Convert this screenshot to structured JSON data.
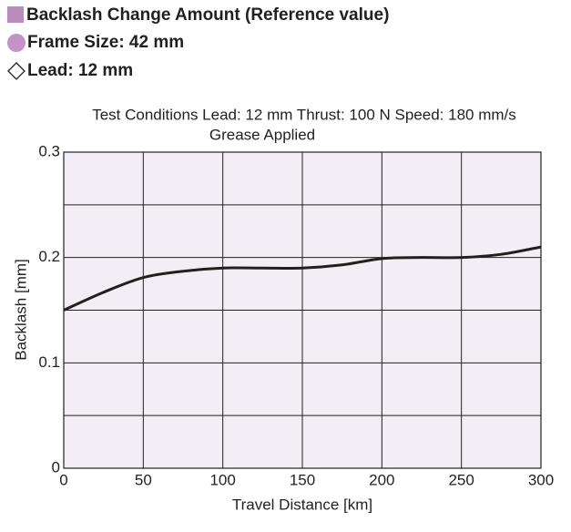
{
  "header": [
    "Backlash Change Amount  (Reference value)",
    "Frame Size: 42 mm",
    "Lead: 12 mm"
  ],
  "chart_data": {
    "type": "line",
    "annotations": [
      "Test Conditions   Lead: 12 mm   Thrust: 100 N   Speed: 180 mm/s",
      "Grease Applied"
    ],
    "x_label": "Travel Distance [km]",
    "y_label": "Backlash [mm]",
    "x": [
      0,
      25,
      50,
      75,
      100,
      125,
      150,
      175,
      200,
      225,
      250,
      275,
      300
    ],
    "series": [
      {
        "name": "Backlash",
        "color": "#231f20",
        "values": [
          0.15,
          0.167,
          0.181,
          0.187,
          0.19,
          0.19,
          0.19,
          0.193,
          0.199,
          0.2,
          0.2,
          0.203,
          0.21
        ]
      }
    ],
    "xlim": [
      0,
      300
    ],
    "xticks": [
      0,
      50,
      100,
      150,
      200,
      250,
      300
    ],
    "ylim": [
      0,
      0.3
    ],
    "yticks": [
      0,
      0.1,
      0.2,
      0.3
    ],
    "y_grid_lines": [
      0.05,
      0.15,
      0.25
    ],
    "grid": true,
    "plot_background": "#f3eef5"
  }
}
